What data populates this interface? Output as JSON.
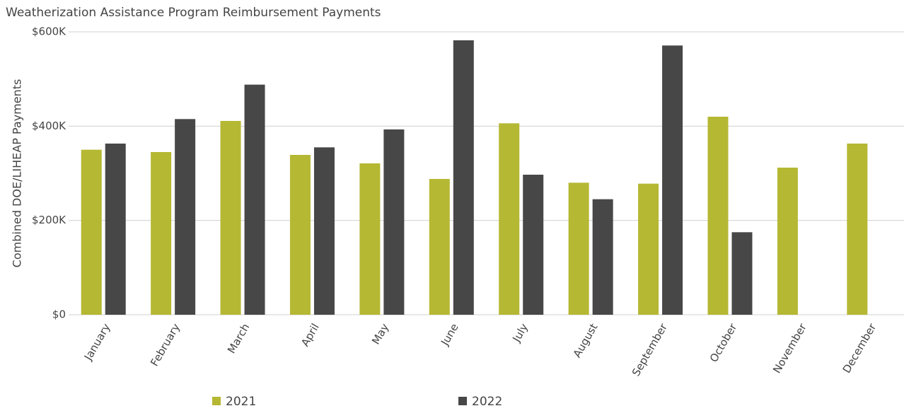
{
  "chart_data": {
    "type": "bar",
    "title": "Weatherization Assistance Program Reimbursement Payments",
    "y_label": "Combined DOE/LIHEAP Payments",
    "categories": [
      "January",
      "February",
      "March",
      "April",
      "May",
      "June",
      "July",
      "August",
      "September",
      "October",
      "November",
      "December"
    ],
    "series": [
      {
        "name": "2021",
        "color": "#b5b833",
        "values": [
          350000,
          345000,
          411000,
          339000,
          321000,
          288000,
          406000,
          280000,
          278000,
          420000,
          312000,
          363000
        ]
      },
      {
        "name": "2022",
        "color": "#474747",
        "values": [
          363000,
          415000,
          488000,
          355000,
          393000,
          582000,
          297000,
          245000,
          571000,
          175000,
          null,
          null
        ]
      }
    ],
    "ylim": [
      0,
      600000
    ],
    "yticks": [
      {
        "value": 0,
        "label": "$0"
      },
      {
        "value": 200000,
        "label": "$200K"
      },
      {
        "value": 400000,
        "label": "$400K"
      },
      {
        "value": 600000,
        "label": "$600K"
      }
    ],
    "grid": true
  }
}
